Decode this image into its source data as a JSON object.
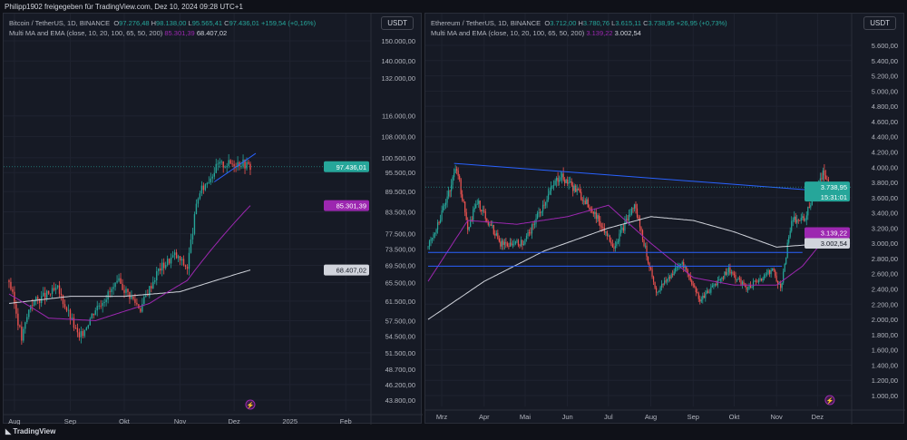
{
  "share_text": "Philipp1902 freigegeben für TradingView.com, Dez 10, 2024 09:28 UTC+1",
  "footer": {
    "logo_text": "TradingView"
  },
  "charts": [
    {
      "symbol": "Bitcoin / TetherUS, 1D, BINANCE",
      "o": "97.276,48",
      "h": "98.138,00",
      "l": "95.565,41",
      "c": "97.436,01",
      "chg": "+159,54 (+0,16%)",
      "indicator": "Multi MA and EMA (close, 10, 20, 100, 65, 50, 200)",
      "ind_v1": "85.301,39",
      "ind_v2": "68.407,02",
      "currency": "USDT",
      "price_label": "97.436,01",
      "ma1_label": "85.301,39",
      "ma2_label": "68.407,02",
      "scale": "log",
      "colors": {
        "up": "#26a69a",
        "down": "#ef5350",
        "ma1": "#9c27b0",
        "ma2": "#d1d4dc",
        "trend": "#2962ff"
      },
      "y_ticks": [
        "150.000,00",
        "140.000,00",
        "132.000,00",
        "116.000,00",
        "108.000,00",
        "100.500,00",
        "95.500,00",
        "89.500,00",
        "83.500,00",
        "77.500,00",
        "73.500,00",
        "69.500,00",
        "65.500,00",
        "61.500,00",
        "57.500,00",
        "54.500,00",
        "51.500,00",
        "48.700,00",
        "46.200,00",
        "43.800,00"
      ],
      "y_vals": [
        150000,
        140000,
        132000,
        116000,
        108000,
        100500,
        95500,
        89500,
        83500,
        77500,
        73500,
        69500,
        65500,
        61500,
        57500,
        54500,
        51500,
        48700,
        46200,
        43800
      ],
      "x_ticks": [
        {
          "label": "Aug",
          "date": "2024-08-01"
        },
        {
          "label": "Sep",
          "date": "2024-09-01"
        },
        {
          "label": "Okt",
          "date": "2024-10-01"
        },
        {
          "label": "Nov",
          "date": "2024-11-01"
        },
        {
          "label": "Dez",
          "date": "2024-12-01"
        },
        {
          "label": "2025",
          "date": "2025-01-01"
        },
        {
          "label": "Feb",
          "date": "2025-02-01"
        }
      ],
      "x_range": [
        "2024-07-26",
        "2025-02-15"
      ],
      "y_range": [
        43800,
        150000
      ],
      "close_path": [
        [
          "2024-07-29",
          66000
        ],
        [
          "2024-08-05",
          54000
        ],
        [
          "2024-08-10",
          61000
        ],
        [
          "2024-08-25",
          64000
        ],
        [
          "2024-09-06",
          54000
        ],
        [
          "2024-09-15",
          60000
        ],
        [
          "2024-09-28",
          65500
        ],
        [
          "2024-10-10",
          60000
        ],
        [
          "2024-10-20",
          68500
        ],
        [
          "2024-10-29",
          72000
        ],
        [
          "2024-11-05",
          69000
        ],
        [
          "2024-11-11",
          88000
        ],
        [
          "2024-11-13",
          90000
        ],
        [
          "2024-11-22",
          98000
        ],
        [
          "2024-12-05",
          99000
        ],
        [
          "2024-12-10",
          97436
        ]
      ],
      "ma1": [
        [
          "2024-07-29",
          63000
        ],
        [
          "2024-08-20",
          58000
        ],
        [
          "2024-09-15",
          57500
        ],
        [
          "2024-10-15",
          61000
        ],
        [
          "2024-11-05",
          66000
        ],
        [
          "2024-11-25",
          77000
        ],
        [
          "2024-12-10",
          85301
        ]
      ],
      "ma2": [
        [
          "2024-07-29",
          61000
        ],
        [
          "2024-09-01",
          62500
        ],
        [
          "2024-10-01",
          62500
        ],
        [
          "2024-11-01",
          63500
        ],
        [
          "2024-12-10",
          68407
        ]
      ],
      "trendlines": [
        [
          [
            "2024-11-20",
            92500
          ],
          [
            "2024-12-13",
            102000
          ]
        ]
      ]
    },
    {
      "symbol": "Ethereum / TetherUS, 1D, BINANCE",
      "o": "3.712,00",
      "h": "3.780,76",
      "l": "3.615,11",
      "c": "3.738,95",
      "chg": "+26,95 (+0,73%)",
      "indicator": "Multi MA and EMA (close, 10, 20, 100, 65, 50, 200)",
      "ind_v1": "3.139,22",
      "ind_v2": "3.002,54",
      "currency": "USDT",
      "price_label": "3.738,95",
      "countdown": "15:31:01",
      "ma1_label": "3.139,22",
      "ma2_label": "3.002,54",
      "scale": "linear",
      "colors": {
        "up": "#26a69a",
        "down": "#ef5350",
        "ma1": "#9c27b0",
        "ma2": "#d1d4dc",
        "trend": "#2962ff"
      },
      "y_ticks": [
        "5.600,00",
        "5.400,00",
        "5.200,00",
        "5.000,00",
        "4.800,00",
        "4.600,00",
        "4.400,00",
        "4.200,00",
        "4.000,00",
        "3.800,00",
        "3.600,00",
        "3.400,00",
        "3.200,00",
        "3.000,00",
        "2.800,00",
        "2.600,00",
        "2.400,00",
        "2.200,00",
        "2.000,00",
        "1.800,00",
        "1.600,00",
        "1.400,00",
        "1.200,00",
        "1.000,00"
      ],
      "y_vals": [
        5600,
        5400,
        5200,
        5000,
        4800,
        4600,
        4400,
        4200,
        4000,
        3800,
        3600,
        3400,
        3200,
        3000,
        2800,
        2600,
        2400,
        2200,
        2000,
        1800,
        1600,
        1400,
        1200,
        1000
      ],
      "x_ticks": [
        {
          "label": "Mrz",
          "date": "2024-03-01"
        },
        {
          "label": "Apr",
          "date": "2024-04-01"
        },
        {
          "label": "Mai",
          "date": "2024-05-01"
        },
        {
          "label": "Jun",
          "date": "2024-06-01"
        },
        {
          "label": "Jul",
          "date": "2024-07-01"
        },
        {
          "label": "Aug",
          "date": "2024-08-01"
        },
        {
          "label": "Sep",
          "date": "2024-09-01"
        },
        {
          "label": "Okt",
          "date": "2024-10-01"
        },
        {
          "label": "Nov",
          "date": "2024-11-01"
        },
        {
          "label": "Dez",
          "date": "2024-12-01"
        }
      ],
      "x_range": [
        "2024-02-18",
        "2024-12-26"
      ],
      "y_range": [
        1000,
        5600
      ],
      "close_path": [
        [
          "2024-02-20",
          2950
        ],
        [
          "2024-03-01",
          3400
        ],
        [
          "2024-03-12",
          4000
        ],
        [
          "2024-03-20",
          3200
        ],
        [
          "2024-03-27",
          3550
        ],
        [
          "2024-04-13",
          3000
        ],
        [
          "2024-04-30",
          3000
        ],
        [
          "2024-05-20",
          3700
        ],
        [
          "2024-05-27",
          3900
        ],
        [
          "2024-06-17",
          3500
        ],
        [
          "2024-06-24",
          3300
        ],
        [
          "2024-07-05",
          2950
        ],
        [
          "2024-07-20",
          3500
        ],
        [
          "2024-08-05",
          2350
        ],
        [
          "2024-08-24",
          2750
        ],
        [
          "2024-09-06",
          2250
        ],
        [
          "2024-09-27",
          2650
        ],
        [
          "2024-10-10",
          2400
        ],
        [
          "2024-10-29",
          2650
        ],
        [
          "2024-11-04",
          2400
        ],
        [
          "2024-11-12",
          3300
        ],
        [
          "2024-11-22",
          3350
        ],
        [
          "2024-12-06",
          3950
        ],
        [
          "2024-12-10",
          3739
        ]
      ],
      "ma1": [
        [
          "2024-02-20",
          2500
        ],
        [
          "2024-03-20",
          3300
        ],
        [
          "2024-04-25",
          3250
        ],
        [
          "2024-06-01",
          3350
        ],
        [
          "2024-07-01",
          3500
        ],
        [
          "2024-08-01",
          3000
        ],
        [
          "2024-09-01",
          2550
        ],
        [
          "2024-10-01",
          2450
        ],
        [
          "2024-11-01",
          2450
        ],
        [
          "2024-11-20",
          2700
        ],
        [
          "2024-12-10",
          3139
        ]
      ],
      "ma2": [
        [
          "2024-02-20",
          2000
        ],
        [
          "2024-04-01",
          2500
        ],
        [
          "2024-05-15",
          2900
        ],
        [
          "2024-07-01",
          3200
        ],
        [
          "2024-08-01",
          3350
        ],
        [
          "2024-09-01",
          3300
        ],
        [
          "2024-10-01",
          3150
        ],
        [
          "2024-11-01",
          2950
        ],
        [
          "2024-12-10",
          3002
        ]
      ],
      "trendlines": [
        [
          [
            "2024-03-10",
            4050
          ],
          [
            "2024-12-10",
            3680
          ]
        ],
        [
          [
            "2024-02-20",
            2880
          ],
          [
            "2024-11-20",
            2880
          ]
        ],
        [
          [
            "2024-02-20",
            2700
          ],
          [
            "2024-11-05",
            2700
          ]
        ]
      ]
    }
  ]
}
